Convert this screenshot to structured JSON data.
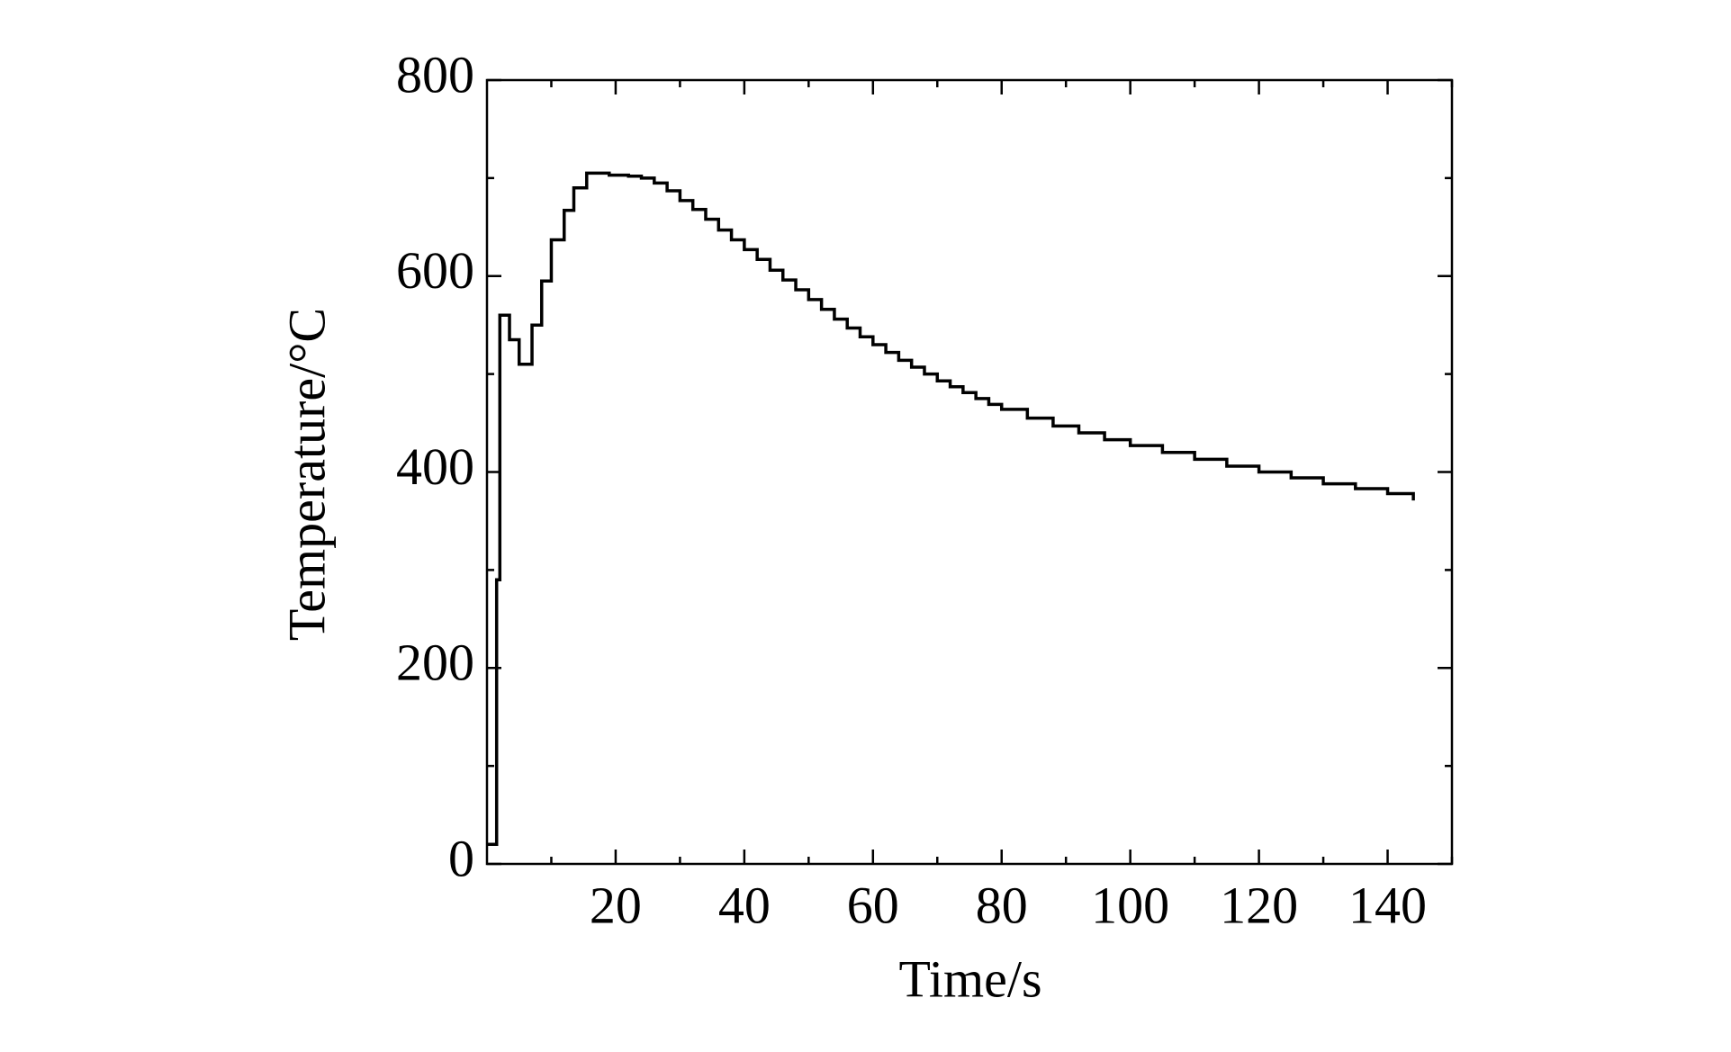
{
  "chart_data": {
    "type": "line",
    "step": "post",
    "x_label": "Time/s",
    "y_label": "Temperature/°C",
    "x": [
      0,
      1.5,
      2,
      3.5,
      5,
      7,
      8.5,
      10,
      12,
      13.5,
      15.5,
      19,
      22,
      24,
      26,
      28,
      30,
      32,
      34,
      36,
      38,
      40,
      42,
      44,
      46,
      48,
      50,
      52,
      54,
      56,
      58,
      60,
      62,
      64,
      66,
      68,
      70,
      72,
      74,
      76,
      78,
      80,
      84,
      88,
      92,
      96,
      100,
      105,
      110,
      115,
      120,
      125,
      130,
      135,
      140,
      144
    ],
    "series": [
      {
        "name": "Temperature",
        "color": "#000000",
        "values": [
          20,
          290,
          560,
          535,
          510,
          550,
          595,
          637,
          667,
          690,
          705,
          703,
          702,
          700,
          695,
          687,
          677,
          668,
          658,
          647,
          637,
          627,
          617,
          606,
          596,
          586,
          576,
          566,
          556,
          547,
          538,
          530,
          522,
          514,
          507,
          500,
          493,
          487,
          481,
          475,
          469,
          464,
          455,
          447,
          440,
          433,
          427,
          420,
          413,
          406,
          400,
          394,
          388,
          383,
          378,
          371
        ]
      }
    ],
    "xlim": [
      0,
      150
    ],
    "xticks": [
      20,
      40,
      60,
      80,
      100,
      120,
      140
    ],
    "xminor": [
      10,
      30,
      50,
      70,
      90,
      110,
      130,
      150
    ],
    "ylim": [
      0,
      800
    ],
    "yticks": [
      0,
      200,
      400,
      600,
      800
    ],
    "yminor": [
      100,
      300,
      500,
      700
    ],
    "grid": false
  }
}
